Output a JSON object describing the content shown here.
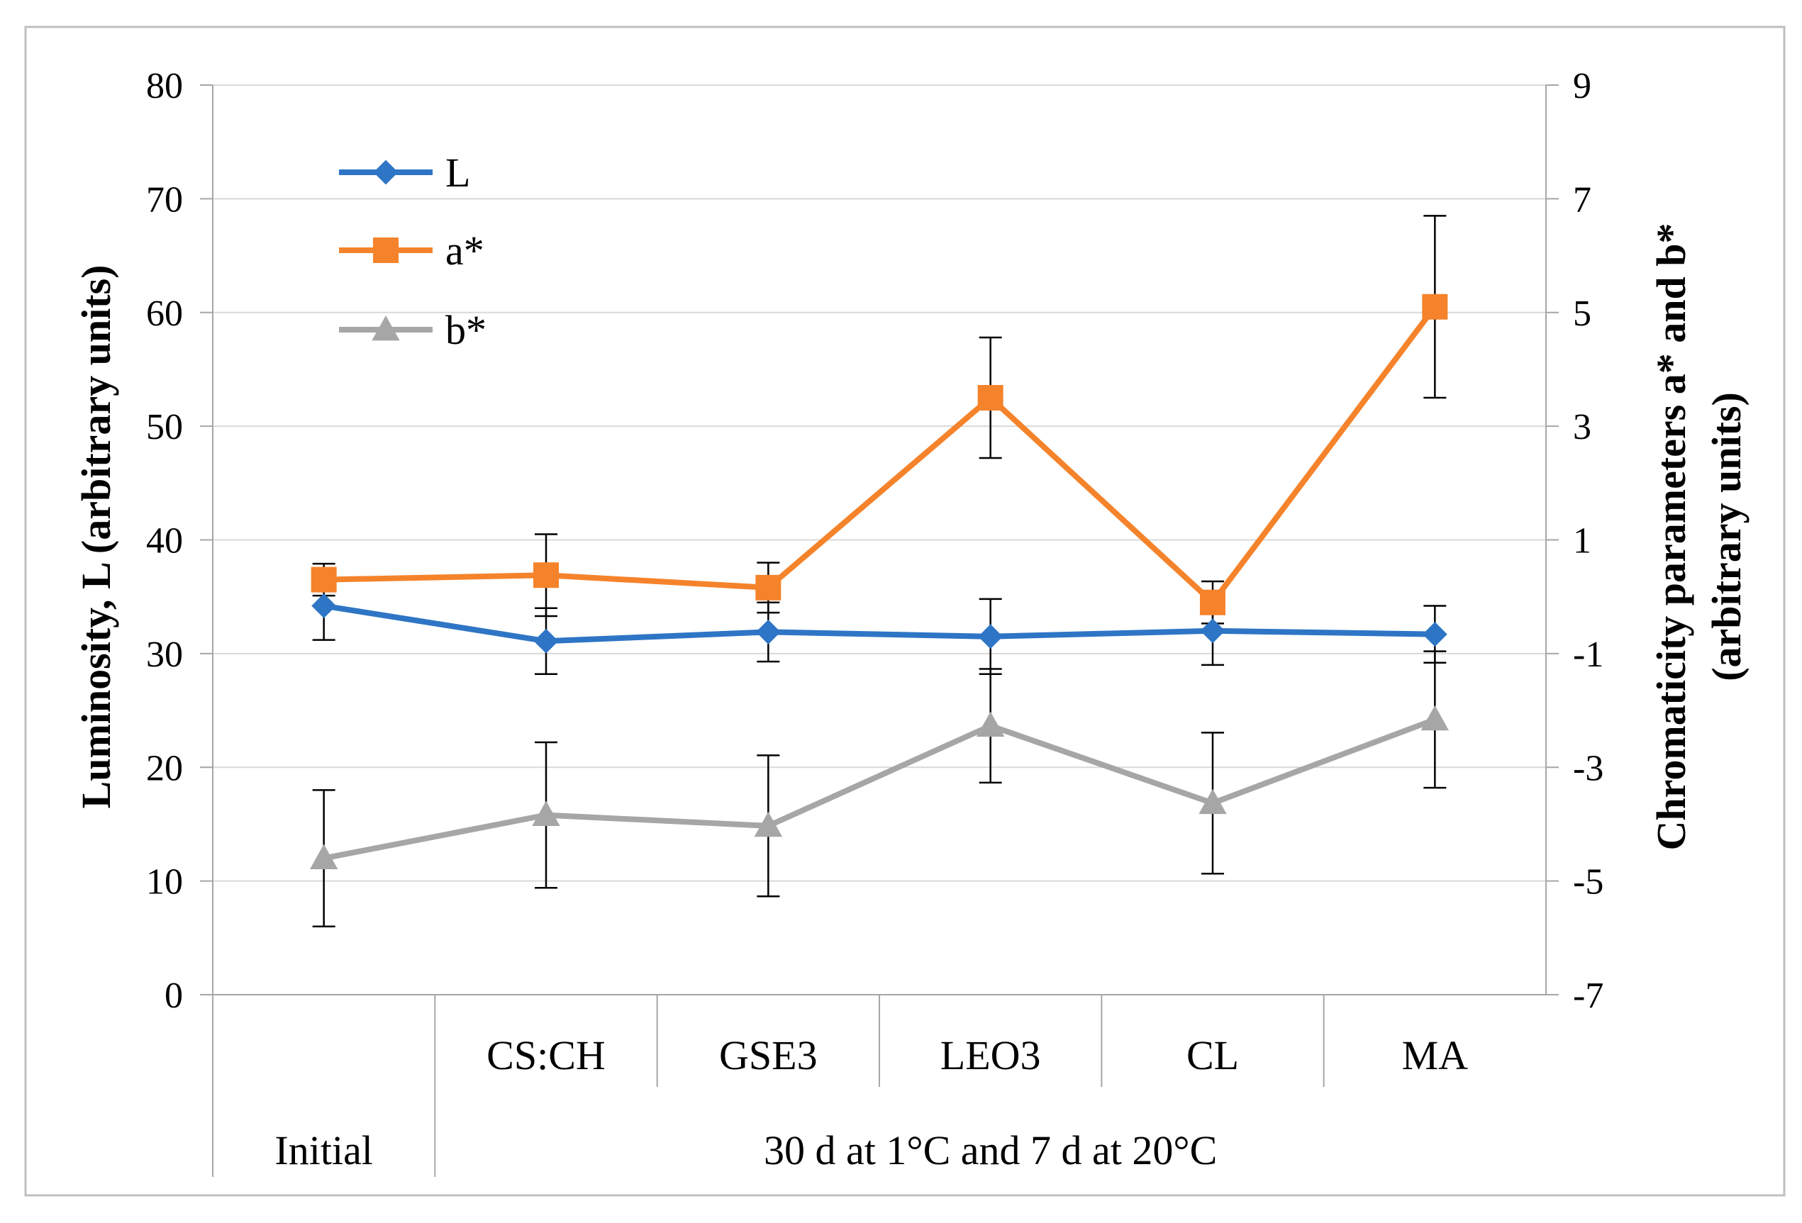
{
  "chart_data": {
    "type": "line",
    "x_categories": [
      "Initial",
      "CS:CH",
      "GSE3",
      "LEO3",
      "CL",
      "MA"
    ],
    "x_group_labels": [
      {
        "label": "Initial",
        "span": [
          "Initial"
        ]
      },
      {
        "label": "30 d at 1°C and 7 d at 20°C",
        "span": [
          "CS:CH",
          "GSE3",
          "LEO3",
          "CL",
          "MA"
        ]
      }
    ],
    "y_left": {
      "label": "Luminosity, L (arbitrary units)",
      "lim": [
        0,
        80
      ],
      "ticks": [
        0,
        10,
        20,
        30,
        40,
        50,
        60,
        70,
        80
      ]
    },
    "y_right": {
      "label_line1": "Chromaticity parameters a* and b*",
      "label_line2": "(arbitrary units)",
      "lim": [
        -7,
        9
      ],
      "ticks": [
        -7,
        -5,
        -3,
        -1,
        1,
        3,
        5,
        7,
        9
      ]
    },
    "grid": true,
    "legend_position": "top-left",
    "series": [
      {
        "name": "L",
        "axis": "left",
        "color": "#2e75c5",
        "marker": "diamond",
        "values": [
          34.2,
          31.1,
          31.9,
          31.5,
          32.0,
          31.7
        ],
        "errors": [
          3.0,
          2.9,
          2.6,
          3.3,
          3.0,
          2.5
        ]
      },
      {
        "name": "a*",
        "axis": "right",
        "color": "#f5832b",
        "marker": "square",
        "values": [
          0.3,
          0.38,
          0.16,
          3.5,
          -0.1,
          5.1
        ],
        "errors": [
          0.28,
          0.72,
          0.44,
          1.06,
          0.37,
          1.6
        ]
      },
      {
        "name": "b*",
        "axis": "right",
        "color": "#a6a6a6",
        "marker": "triangle",
        "values": [
          -4.6,
          -3.84,
          -4.03,
          -2.27,
          -3.63,
          -2.16
        ],
        "errors": [
          1.2,
          1.28,
          1.24,
          1.0,
          1.24,
          1.2
        ]
      }
    ]
  }
}
